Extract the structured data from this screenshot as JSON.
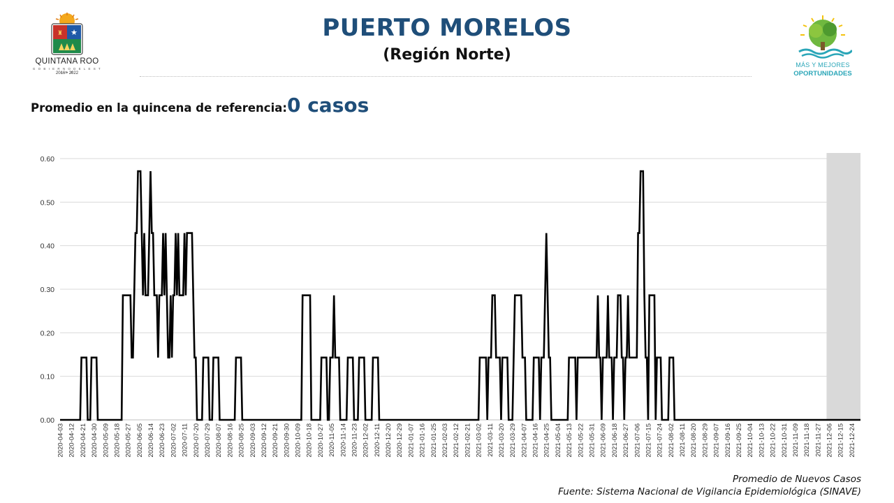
{
  "header": {
    "title": "PUERTO MORELOS",
    "subtitle": "(Región Norte)",
    "left_logo": {
      "name": "QUINTANA ROO",
      "tagline": "G O B I E R N O   D E L   E S T A D O",
      "years": "2016 • 2022"
    },
    "right_logo": {
      "line1": "MÁS Y MEJORES",
      "line2": "OPORTUNIDADES"
    }
  },
  "summary": {
    "label": "Promedio en la quincena de referencia:",
    "value": "0 casos"
  },
  "footer": {
    "series_caption": "Promedio de Nuevos Casos",
    "source": "Fuente: Sistema Nacional de Vigilancia Epidemiológica (SINAVE)"
  },
  "colors": {
    "title": "#1f4e79",
    "line": "#000000",
    "grid": "#d9d9d9",
    "shade": "#d9d9d9"
  },
  "chart_data": {
    "type": "line",
    "title": "",
    "xlabel": "",
    "ylabel": "",
    "ylim": [
      0,
      0.6
    ],
    "yticks": [
      "0.00",
      "0.10",
      "0.20",
      "0.30",
      "0.40",
      "0.50",
      "0.60"
    ],
    "grid": true,
    "x_start": "2020-04-03",
    "x_end": "2021-12-31",
    "shaded_range": [
      "2021-12-04",
      "2021-12-31"
    ],
    "xtick_labels": [
      "2020-04-03",
      "2020-04-12",
      "2020-04-21",
      "2020-04-30",
      "2020-05-09",
      "2020-05-18",
      "2020-05-27",
      "2020-06-05",
      "2020-06-14",
      "2020-06-23",
      "2020-07-02",
      "2020-07-11",
      "2020-07-20",
      "2020-07-29",
      "2020-08-07",
      "2020-08-16",
      "2020-08-25",
      "2020-09-03",
      "2020-09-12",
      "2020-09-21",
      "2020-09-30",
      "2020-10-09",
      "2020-10-18",
      "2020-10-27",
      "2020-11-05",
      "2020-11-14",
      "2020-11-23",
      "2020-12-02",
      "2020-12-11",
      "2020-12-20",
      "2020-12-29",
      "2021-01-07",
      "2021-01-16",
      "2021-01-25",
      "2021-02-03",
      "2021-02-12",
      "2021-02-21",
      "2021-03-02",
      "2021-03-11",
      "2021-03-20",
      "2021-03-29",
      "2021-04-07",
      "2021-04-16",
      "2021-04-25",
      "2021-05-04",
      "2021-05-13",
      "2021-05-22",
      "2021-05-31",
      "2021-06-09",
      "2021-06-18",
      "2021-06-27",
      "2021-07-06",
      "2021-07-15",
      "2021-07-24",
      "2021-08-02",
      "2021-08-11",
      "2021-08-20",
      "2021-08-29",
      "2021-09-07",
      "2021-09-16",
      "2021-09-25",
      "2021-10-04",
      "2021-10-13",
      "2021-10-22",
      "2021-10-31",
      "2021-11-09",
      "2021-11-18",
      "2021-11-27",
      "2021-12-06",
      "2021-12-15",
      "2021-12-24"
    ],
    "series": [
      {
        "values": [
          [
            "2020-04-03",
            0
          ],
          [
            "2020-04-19",
            0
          ],
          [
            "2020-04-20",
            0.143
          ],
          [
            "2020-04-24",
            0.143
          ],
          [
            "2020-04-25",
            0
          ],
          [
            "2020-04-27",
            0
          ],
          [
            "2020-04-28",
            0.143
          ],
          [
            "2020-05-02",
            0.143
          ],
          [
            "2020-05-03",
            0
          ],
          [
            "2020-05-22",
            0
          ],
          [
            "2020-05-23",
            0.286
          ],
          [
            "2020-05-29",
            0.286
          ],
          [
            "2020-05-30",
            0.143
          ],
          [
            "2020-05-31",
            0.143
          ],
          [
            "2020-06-01",
            0.286
          ],
          [
            "2020-06-02",
            0.429
          ],
          [
            "2020-06-03",
            0.429
          ],
          [
            "2020-06-04",
            0.571
          ],
          [
            "2020-06-06",
            0.571
          ],
          [
            "2020-06-07",
            0.429
          ],
          [
            "2020-06-08",
            0.286
          ],
          [
            "2020-06-09",
            0.429
          ],
          [
            "2020-06-10",
            0.286
          ],
          [
            "2020-06-12",
            0.286
          ],
          [
            "2020-06-13",
            0.429
          ],
          [
            "2020-06-14",
            0.571
          ],
          [
            "2020-06-15",
            0.429
          ],
          [
            "2020-06-16",
            0.429
          ],
          [
            "2020-06-17",
            0.286
          ],
          [
            "2020-06-19",
            0.286
          ],
          [
            "2020-06-20",
            0.143
          ],
          [
            "2020-06-21",
            0.286
          ],
          [
            "2020-06-23",
            0.286
          ],
          [
            "2020-06-24",
            0.429
          ],
          [
            "2020-06-25",
            0.286
          ],
          [
            "2020-06-26",
            0.429
          ],
          [
            "2020-06-27",
            0.286
          ],
          [
            "2020-06-28",
            0.143
          ],
          [
            "2020-06-29",
            0.143
          ],
          [
            "2020-06-30",
            0.286
          ],
          [
            "2020-07-01",
            0.143
          ],
          [
            "2020-07-02",
            0.286
          ],
          [
            "2020-07-03",
            0.286
          ],
          [
            "2020-07-04",
            0.429
          ],
          [
            "2020-07-05",
            0.286
          ],
          [
            "2020-07-06",
            0.429
          ],
          [
            "2020-07-07",
            0.286
          ],
          [
            "2020-07-10",
            0.286
          ],
          [
            "2020-07-11",
            0.429
          ],
          [
            "2020-07-12",
            0.286
          ],
          [
            "2020-07-13",
            0.429
          ],
          [
            "2020-07-17",
            0.429
          ],
          [
            "2020-07-18",
            0.286
          ],
          [
            "2020-07-19",
            0.143
          ],
          [
            "2020-07-20",
            0.143
          ],
          [
            "2020-07-21",
            0
          ],
          [
            "2020-07-25",
            0
          ],
          [
            "2020-07-26",
            0.143
          ],
          [
            "2020-07-30",
            0.143
          ],
          [
            "2020-07-31",
            0
          ],
          [
            "2020-08-02",
            0
          ],
          [
            "2020-08-03",
            0.143
          ],
          [
            "2020-08-07",
            0.143
          ],
          [
            "2020-08-08",
            0
          ],
          [
            "2020-08-20",
            0
          ],
          [
            "2020-08-21",
            0.143
          ],
          [
            "2020-08-25",
            0.143
          ],
          [
            "2020-08-26",
            0
          ],
          [
            "2020-10-12",
            0
          ],
          [
            "2020-10-13",
            0.286
          ],
          [
            "2020-10-19",
            0.286
          ],
          [
            "2020-10-20",
            0
          ],
          [
            "2020-10-27",
            0
          ],
          [
            "2020-10-28",
            0.143
          ],
          [
            "2020-11-01",
            0.143
          ],
          [
            "2020-11-02",
            0
          ],
          [
            "2020-11-03",
            0
          ],
          [
            "2020-11-04",
            0.143
          ],
          [
            "2020-11-06",
            0.143
          ],
          [
            "2020-11-07",
            0.286
          ],
          [
            "2020-11-08",
            0.143
          ],
          [
            "2020-11-11",
            0.143
          ],
          [
            "2020-11-12",
            0
          ],
          [
            "2020-11-17",
            0
          ],
          [
            "2020-11-18",
            0.143
          ],
          [
            "2020-11-22",
            0.143
          ],
          [
            "2020-11-23",
            0
          ],
          [
            "2020-11-26",
            0
          ],
          [
            "2020-11-27",
            0.143
          ],
          [
            "2020-12-01",
            0.143
          ],
          [
            "2020-12-02",
            0
          ],
          [
            "2020-12-07",
            0
          ],
          [
            "2020-12-08",
            0.143
          ],
          [
            "2020-12-12",
            0.143
          ],
          [
            "2020-12-13",
            0
          ],
          [
            "2021-03-02",
            0
          ],
          [
            "2021-03-03",
            0.143
          ],
          [
            "2021-03-08",
            0.143
          ],
          [
            "2021-03-09",
            0
          ],
          [
            "2021-03-10",
            0.143
          ],
          [
            "2021-03-12",
            0.143
          ],
          [
            "2021-03-13",
            0.286
          ],
          [
            "2021-03-15",
            0.286
          ],
          [
            "2021-03-16",
            0.143
          ],
          [
            "2021-03-19",
            0.143
          ],
          [
            "2021-03-20",
            0
          ],
          [
            "2021-03-21",
            0.143
          ],
          [
            "2021-03-25",
            0.143
          ],
          [
            "2021-03-26",
            0
          ],
          [
            "2021-03-29",
            0
          ],
          [
            "2021-03-30",
            0.143
          ],
          [
            "2021-03-31",
            0.286
          ],
          [
            "2021-04-05",
            0.286
          ],
          [
            "2021-04-06",
            0.143
          ],
          [
            "2021-04-08",
            0.143
          ],
          [
            "2021-04-09",
            0
          ],
          [
            "2021-04-14",
            0
          ],
          [
            "2021-04-15",
            0.143
          ],
          [
            "2021-04-19",
            0.143
          ],
          [
            "2021-04-20",
            0
          ],
          [
            "2021-04-21",
            0.143
          ],
          [
            "2021-04-23",
            0.143
          ],
          [
            "2021-04-24",
            0.286
          ],
          [
            "2021-04-25",
            0.429
          ],
          [
            "2021-04-26",
            0.286
          ],
          [
            "2021-04-27",
            0.143
          ],
          [
            "2021-04-28",
            0.143
          ],
          [
            "2021-04-29",
            0
          ],
          [
            "2021-05-12",
            0
          ],
          [
            "2021-05-13",
            0.143
          ],
          [
            "2021-05-18",
            0.143
          ],
          [
            "2021-05-19",
            0
          ],
          [
            "2021-05-20",
            0.143
          ],
          [
            "2021-06-04",
            0.143
          ],
          [
            "2021-06-05",
            0.286
          ],
          [
            "2021-06-06",
            0.143
          ],
          [
            "2021-06-07",
            0.143
          ],
          [
            "2021-06-08",
            0
          ],
          [
            "2021-06-09",
            0.143
          ],
          [
            "2021-06-12",
            0.143
          ],
          [
            "2021-06-13",
            0.286
          ],
          [
            "2021-06-14",
            0.143
          ],
          [
            "2021-06-16",
            0.143
          ],
          [
            "2021-06-17",
            0
          ],
          [
            "2021-06-18",
            0.143
          ],
          [
            "2021-06-20",
            0.143
          ],
          [
            "2021-06-21",
            0.286
          ],
          [
            "2021-06-23",
            0.286
          ],
          [
            "2021-06-24",
            0.143
          ],
          [
            "2021-06-25",
            0.143
          ],
          [
            "2021-06-26",
            0
          ],
          [
            "2021-06-27",
            0.143
          ],
          [
            "2021-06-28",
            0.143
          ],
          [
            "2021-06-29",
            0.286
          ],
          [
            "2021-06-30",
            0.143
          ],
          [
            "2021-07-05",
            0.143
          ],
          [
            "2021-07-06",
            0.143
          ],
          [
            "2021-07-07",
            0.429
          ],
          [
            "2021-07-08",
            0.429
          ],
          [
            "2021-07-09",
            0.571
          ],
          [
            "2021-07-11",
            0.571
          ],
          [
            "2021-07-12",
            0.286
          ],
          [
            "2021-07-13",
            0.143
          ],
          [
            "2021-07-14",
            0.143
          ],
          [
            "2021-07-15",
            0
          ],
          [
            "2021-07-16",
            0.286
          ],
          [
            "2021-07-20",
            0.286
          ],
          [
            "2021-07-21",
            0
          ],
          [
            "2021-07-22",
            0.143
          ],
          [
            "2021-07-25",
            0.143
          ],
          [
            "2021-07-26",
            0
          ],
          [
            "2021-07-31",
            0
          ],
          [
            "2021-08-01",
            0.143
          ],
          [
            "2021-08-04",
            0.143
          ],
          [
            "2021-08-05",
            0
          ],
          [
            "2021-12-31",
            0
          ]
        ]
      }
    ]
  }
}
